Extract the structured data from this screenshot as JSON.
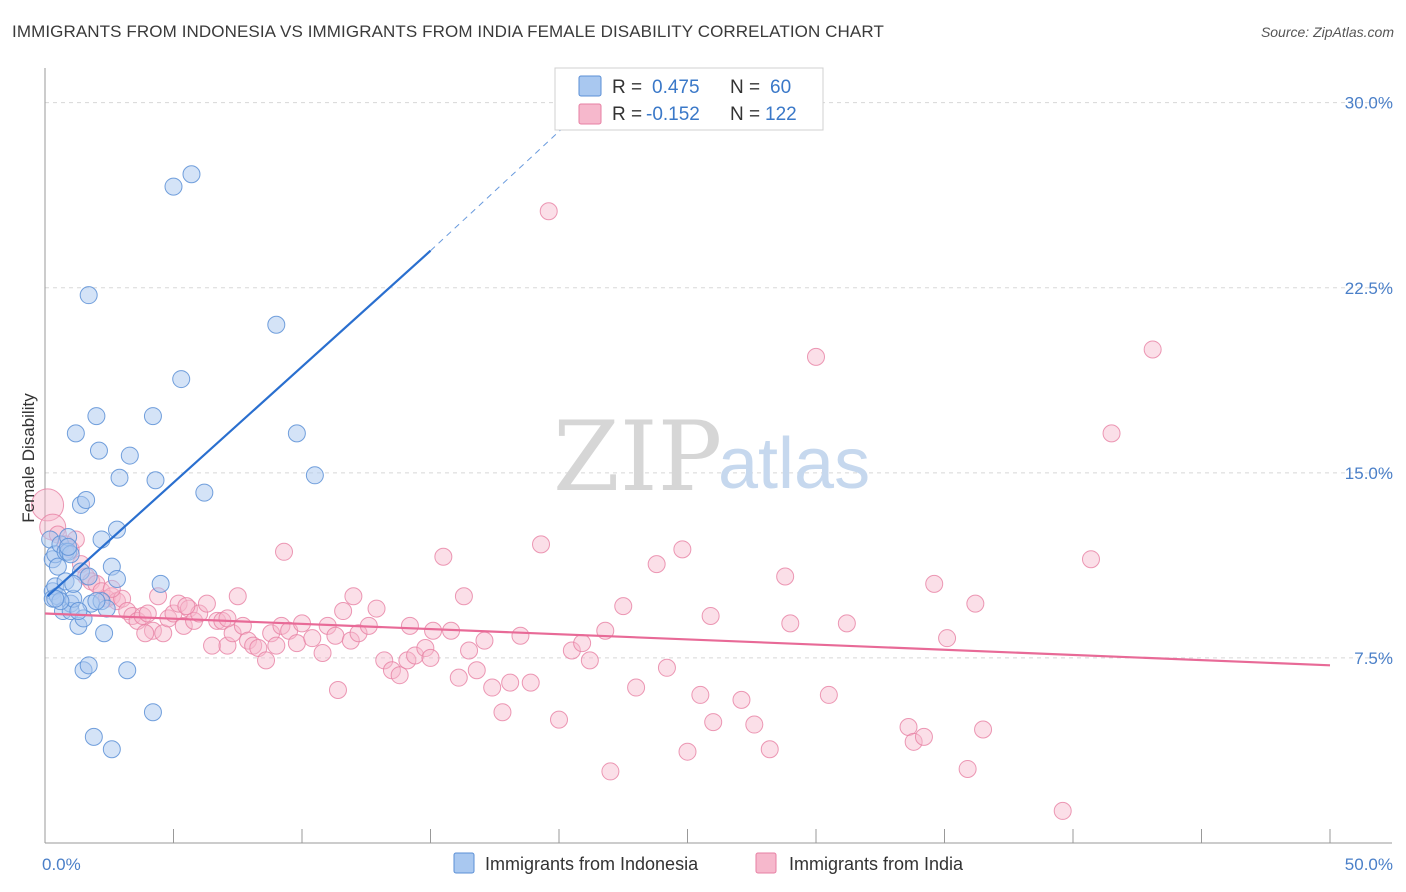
{
  "title": "IMMIGRANTS FROM INDONESIA VS IMMIGRANTS FROM INDIA FEMALE DISABILITY CORRELATION CHART",
  "source": "Source: ZipAtlas.com",
  "watermark": {
    "zip": "ZIP",
    "atlas": "atlas"
  },
  "colors": {
    "indonesia_fill": "#a9c8f0",
    "indonesia_stroke": "#5b8fd6",
    "indonesia_line": "#2a6fcf",
    "india_fill": "#f6b8cc",
    "india_stroke": "#e77fa3",
    "india_line": "#e86a97",
    "tick_text": "#4a7fc8",
    "grid": "#d8d8d8"
  },
  "legend": {
    "rows": [
      {
        "r_label": "R =",
        "r_value": "0.475",
        "n_label": "N =",
        "n_value": "60"
      },
      {
        "r_label": "R =",
        "r_value": "-0.152",
        "n_label": "N =",
        "n_value": "122"
      }
    ]
  },
  "chart_data": {
    "type": "scatter",
    "title": "IMMIGRANTS FROM INDONESIA VS IMMIGRANTS FROM INDIA FEMALE DISABILITY CORRELATION CHART",
    "xlabel": "",
    "ylabel": "Female Disability",
    "xlim": [
      0,
      50
    ],
    "ylim": [
      0,
      31
    ],
    "x_tick_labels": [
      "0.0%",
      "50.0%"
    ],
    "y_ticks": [
      7.5,
      15.0,
      22.5,
      30.0
    ],
    "y_tick_labels": [
      "7.5%",
      "15.0%",
      "22.5%",
      "30.0%"
    ],
    "x_minor_ticks": [
      0,
      5,
      10,
      15,
      20,
      25,
      30,
      35,
      40,
      45,
      50
    ],
    "series": [
      {
        "name": "Immigrants from Indonesia",
        "r": 0.475,
        "n": 60,
        "trend": {
          "x0": 0.1,
          "y0": 10.0,
          "x1": 15.0,
          "y1": 24.0,
          "x_dash_end": 21.0,
          "y_dash_end": 29.8
        },
        "points": [
          [
            0.2,
            12.3
          ],
          [
            0.3,
            11.5
          ],
          [
            0.3,
            10.2
          ],
          [
            0.3,
            9.9
          ],
          [
            0.4,
            11.7
          ],
          [
            0.4,
            10.4
          ],
          [
            0.5,
            11.2
          ],
          [
            0.5,
            10.0
          ],
          [
            0.6,
            12.1
          ],
          [
            0.7,
            9.4
          ],
          [
            0.8,
            11.8
          ],
          [
            0.8,
            10.6
          ],
          [
            0.9,
            12.4
          ],
          [
            0.9,
            11.8
          ],
          [
            1.0,
            9.7
          ],
          [
            1.0,
            9.4
          ],
          [
            1.1,
            9.9
          ],
          [
            1.2,
            16.6
          ],
          [
            1.3,
            8.8
          ],
          [
            1.4,
            13.7
          ],
          [
            1.4,
            11.0
          ],
          [
            1.5,
            7.0
          ],
          [
            1.5,
            9.1
          ],
          [
            1.6,
            13.9
          ],
          [
            1.7,
            10.8
          ],
          [
            1.7,
            7.2
          ],
          [
            1.8,
            9.7
          ],
          [
            1.9,
            4.3
          ],
          [
            2.0,
            17.3
          ],
          [
            2.1,
            15.9
          ],
          [
            2.2,
            9.8
          ],
          [
            2.2,
            12.3
          ],
          [
            2.3,
            8.5
          ],
          [
            2.4,
            9.5
          ],
          [
            2.6,
            3.8
          ],
          [
            2.6,
            11.2
          ],
          [
            2.8,
            12.7
          ],
          [
            2.8,
            10.7
          ],
          [
            2.9,
            14.8
          ],
          [
            3.2,
            7.0
          ],
          [
            3.3,
            15.7
          ],
          [
            4.2,
            17.3
          ],
          [
            4.3,
            14.7
          ],
          [
            4.5,
            10.5
          ],
          [
            5.0,
            26.6
          ],
          [
            5.3,
            18.8
          ],
          [
            5.7,
            27.1
          ],
          [
            6.2,
            14.2
          ],
          [
            9.0,
            21.0
          ],
          [
            9.8,
            16.6
          ],
          [
            10.5,
            14.9
          ],
          [
            1.7,
            22.2
          ],
          [
            4.2,
            5.3
          ],
          [
            1.0,
            11.7
          ],
          [
            0.6,
            9.8
          ],
          [
            1.3,
            9.4
          ],
          [
            2.0,
            9.8
          ],
          [
            0.4,
            9.9
          ],
          [
            1.1,
            10.5
          ],
          [
            0.9,
            12.0
          ]
        ]
      },
      {
        "name": "Immigrants from India",
        "r": -0.152,
        "n": 122,
        "trend": {
          "x0": 0.0,
          "y0": 9.3,
          "x1": 50.0,
          "y1": 7.2
        },
        "points": [
          [
            0.1,
            13.7
          ],
          [
            0.3,
            12.8
          ],
          [
            0.5,
            12.5
          ],
          [
            0.8,
            12.1
          ],
          [
            1.0,
            11.9
          ],
          [
            1.4,
            11.3
          ],
          [
            1.6,
            10.8
          ],
          [
            1.8,
            10.6
          ],
          [
            2.0,
            10.5
          ],
          [
            2.2,
            10.2
          ],
          [
            2.4,
            9.9
          ],
          [
            2.6,
            10.0
          ],
          [
            2.8,
            9.8
          ],
          [
            3.0,
            9.9
          ],
          [
            3.2,
            9.4
          ],
          [
            3.4,
            9.2
          ],
          [
            3.6,
            9.0
          ],
          [
            3.8,
            9.2
          ],
          [
            4.0,
            9.3
          ],
          [
            4.2,
            8.6
          ],
          [
            4.4,
            10.0
          ],
          [
            4.6,
            8.5
          ],
          [
            4.8,
            9.1
          ],
          [
            5.0,
            9.3
          ],
          [
            5.2,
            9.7
          ],
          [
            5.4,
            8.8
          ],
          [
            5.6,
            9.5
          ],
          [
            5.8,
            9.0
          ],
          [
            6.0,
            9.3
          ],
          [
            6.3,
            9.7
          ],
          [
            6.5,
            8.0
          ],
          [
            6.7,
            9.0
          ],
          [
            6.9,
            9.0
          ],
          [
            7.1,
            8.0
          ],
          [
            7.3,
            8.5
          ],
          [
            7.5,
            10.0
          ],
          [
            7.7,
            8.8
          ],
          [
            7.9,
            8.2
          ],
          [
            8.1,
            8.0
          ],
          [
            8.3,
            7.9
          ],
          [
            8.6,
            7.4
          ],
          [
            8.8,
            8.5
          ],
          [
            9.0,
            8.0
          ],
          [
            9.2,
            8.8
          ],
          [
            9.5,
            8.6
          ],
          [
            9.8,
            8.1
          ],
          [
            10.0,
            8.9
          ],
          [
            10.4,
            8.3
          ],
          [
            10.8,
            7.7
          ],
          [
            11.0,
            8.8
          ],
          [
            11.3,
            8.4
          ],
          [
            11.6,
            9.4
          ],
          [
            11.9,
            8.2
          ],
          [
            12.2,
            8.5
          ],
          [
            12.6,
            8.8
          ],
          [
            12.9,
            9.5
          ],
          [
            13.2,
            7.4
          ],
          [
            13.5,
            7.0
          ],
          [
            13.8,
            6.8
          ],
          [
            14.1,
            7.4
          ],
          [
            14.4,
            7.6
          ],
          [
            14.8,
            7.9
          ],
          [
            15.1,
            8.6
          ],
          [
            15.5,
            11.6
          ],
          [
            15.8,
            8.6
          ],
          [
            16.1,
            6.7
          ],
          [
            16.5,
            7.8
          ],
          [
            16.8,
            7.0
          ],
          [
            17.1,
            8.2
          ],
          [
            17.4,
            6.3
          ],
          [
            17.8,
            5.3
          ],
          [
            18.1,
            6.5
          ],
          [
            18.5,
            8.4
          ],
          [
            18.9,
            6.5
          ],
          [
            19.3,
            12.1
          ],
          [
            19.6,
            25.6
          ],
          [
            20.0,
            5.0
          ],
          [
            20.5,
            7.8
          ],
          [
            20.9,
            8.1
          ],
          [
            21.2,
            7.4
          ],
          [
            21.8,
            8.6
          ],
          [
            22.0,
            2.9
          ],
          [
            22.5,
            9.6
          ],
          [
            23.0,
            6.3
          ],
          [
            23.8,
            11.3
          ],
          [
            24.2,
            7.1
          ],
          [
            24.8,
            11.9
          ],
          [
            25.0,
            3.7
          ],
          [
            25.5,
            6.0
          ],
          [
            25.9,
            9.2
          ],
          [
            26.0,
            4.9
          ],
          [
            27.1,
            5.8
          ],
          [
            27.6,
            4.8
          ],
          [
            28.2,
            3.8
          ],
          [
            28.8,
            10.8
          ],
          [
            29.0,
            8.9
          ],
          [
            30.0,
            19.7
          ],
          [
            30.5,
            6.0
          ],
          [
            31.2,
            8.9
          ],
          [
            33.6,
            4.7
          ],
          [
            33.8,
            4.1
          ],
          [
            34.2,
            4.3
          ],
          [
            34.6,
            10.5
          ],
          [
            35.1,
            8.3
          ],
          [
            35.9,
            3.0
          ],
          [
            36.2,
            9.7
          ],
          [
            36.5,
            4.6
          ],
          [
            39.6,
            1.3
          ],
          [
            40.7,
            11.5
          ],
          [
            41.5,
            16.6
          ],
          [
            43.1,
            20.0
          ],
          [
            11.4,
            6.2
          ],
          [
            12.0,
            10.0
          ],
          [
            9.3,
            11.8
          ],
          [
            7.1,
            9.1
          ],
          [
            3.9,
            8.5
          ],
          [
            5.5,
            9.6
          ],
          [
            2.6,
            10.3
          ],
          [
            1.2,
            12.3
          ],
          [
            16.3,
            10.0
          ],
          [
            15.0,
            7.5
          ],
          [
            14.2,
            8.8
          ]
        ]
      }
    ],
    "bottom_legend": [
      "Immigrants from Indonesia",
      "Immigrants from India"
    ]
  }
}
